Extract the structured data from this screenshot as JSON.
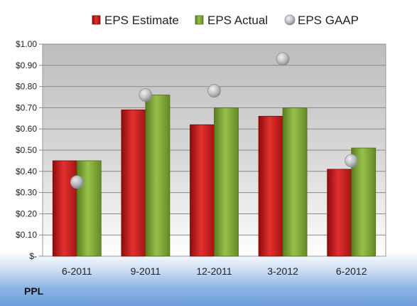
{
  "company_label": "PPL",
  "chart_data": {
    "type": "bar",
    "categories": [
      "6-2011",
      "9-2011",
      "12-2011",
      "3-2012",
      "6-2012"
    ],
    "series": [
      {
        "name": "EPS Estimate",
        "kind": "bar",
        "color": "#d42222",
        "values": [
          0.45,
          0.69,
          0.62,
          0.66,
          0.41
        ]
      },
      {
        "name": "EPS Actual",
        "kind": "bar",
        "color": "#86b23a",
        "values": [
          0.45,
          0.76,
          0.7,
          0.7,
          0.51
        ]
      },
      {
        "name": "EPS GAAP",
        "kind": "scatter",
        "color": "#b9bcc2",
        "values": [
          0.35,
          0.76,
          0.78,
          0.93,
          0.45
        ]
      }
    ],
    "ylim": [
      0,
      1.0
    ],
    "ytick_labels": [
      "$-",
      "$0.10",
      "$0.20",
      "$0.30",
      "$0.40",
      "$0.50",
      "$0.60",
      "$0.70",
      "$0.80",
      "$0.90",
      "$1.00"
    ],
    "grid": true,
    "legend_position": "top"
  }
}
